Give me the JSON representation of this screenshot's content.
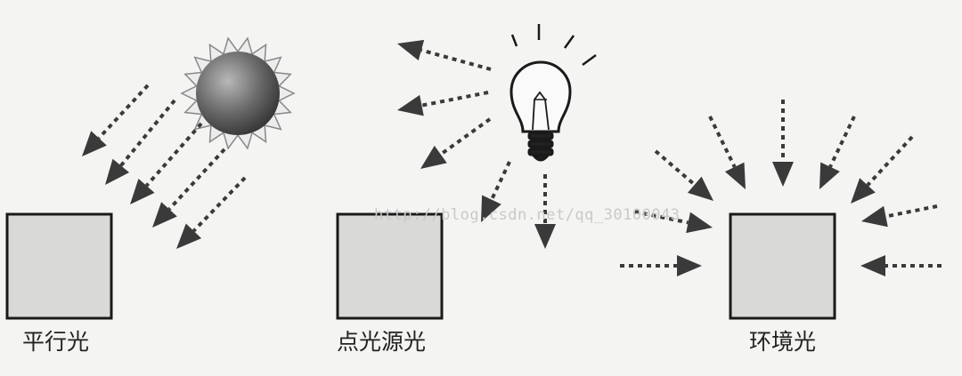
{
  "captions": {
    "parallel": "平行光",
    "point": "点光源光",
    "ambient": "环境光"
  },
  "watermark": "http://blog.csdn.net/qq_30100043",
  "colors": {
    "background": "#f4f4f2",
    "box_fill": "#d9d9d7",
    "box_stroke": "#1a1a1a",
    "arrow": "#3a3a3a"
  },
  "icons": {
    "light_source_1": "sun-icon",
    "light_source_2": "light-bulb-icon"
  }
}
